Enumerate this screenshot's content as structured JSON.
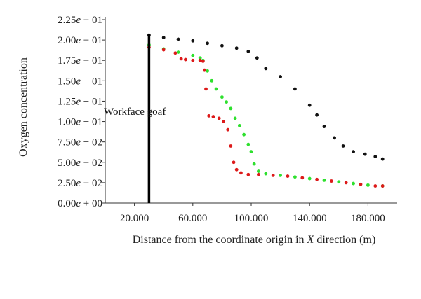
{
  "chart_data": {
    "type": "scatter",
    "xlabel_pre": "Distance from the coordinate origin in ",
    "xlabel_var": "X",
    "xlabel_post": " direction (m)",
    "ylabel": "Oxygen concentration",
    "xlim": [
      0,
      200
    ],
    "ylim": [
      0,
      0.225
    ],
    "x_ticks": [
      {
        "value": 20,
        "label": "20.000"
      },
      {
        "value": 60,
        "label": "60.000"
      },
      {
        "value": 100,
        "label": "100.000"
      },
      {
        "value": 140,
        "label": "140.000"
      },
      {
        "value": 180,
        "label": "180.000"
      }
    ],
    "y_ticks": [
      {
        "value": 0,
        "mantissa": "0.00",
        "exp": "+ 00"
      },
      {
        "value": 0.025,
        "mantissa": "2.50",
        "exp": "− 02"
      },
      {
        "value": 0.05,
        "mantissa": "5.00",
        "exp": "− 02"
      },
      {
        "value": 0.075,
        "mantissa": "7.50",
        "exp": "− 02"
      },
      {
        "value": 0.1,
        "mantissa": "1.00",
        "exp": "− 01"
      },
      {
        "value": 0.125,
        "mantissa": "1.25",
        "exp": "− 01"
      },
      {
        "value": 0.15,
        "mantissa": "1.50",
        "exp": "− 01"
      },
      {
        "value": 0.175,
        "mantissa": "1.75",
        "exp": "− 01"
      },
      {
        "value": 0.2,
        "mantissa": "2.00",
        "exp": "− 01"
      },
      {
        "value": 0.225,
        "mantissa": "2.25",
        "exp": "− 01"
      }
    ],
    "annotation": {
      "text": "Workface goaf",
      "x": 30
    },
    "grid": false,
    "legend": "none",
    "series": [
      {
        "color": "#111111",
        "points": [
          [
            30,
            0.206
          ],
          [
            40,
            0.203
          ],
          [
            50,
            0.201
          ],
          [
            60,
            0.199
          ],
          [
            70,
            0.196
          ],
          [
            80,
            0.193
          ],
          [
            90,
            0.19
          ],
          [
            98,
            0.186
          ],
          [
            104,
            0.178
          ],
          [
            110,
            0.165
          ],
          [
            120,
            0.155
          ],
          [
            130,
            0.14
          ],
          [
            140,
            0.12
          ],
          [
            145,
            0.108
          ],
          [
            150,
            0.094
          ],
          [
            157,
            0.08
          ],
          [
            163,
            0.07
          ],
          [
            170,
            0.063
          ],
          [
            178,
            0.06
          ],
          [
            185,
            0.057
          ],
          [
            190,
            0.054
          ]
        ]
      },
      {
        "color": "#2ee02e",
        "points": [
          [
            30,
            0.194
          ],
          [
            40,
            0.189
          ],
          [
            50,
            0.185
          ],
          [
            60,
            0.181
          ],
          [
            65,
            0.178
          ],
          [
            67,
            0.175
          ],
          [
            70,
            0.162
          ],
          [
            73,
            0.15
          ],
          [
            76,
            0.14
          ],
          [
            80,
            0.13
          ],
          [
            83,
            0.124
          ],
          [
            86,
            0.116
          ],
          [
            89,
            0.104
          ],
          [
            92,
            0.095
          ],
          [
            95,
            0.084
          ],
          [
            98,
            0.072
          ],
          [
            100,
            0.063
          ],
          [
            102,
            0.048
          ],
          [
            105,
            0.039
          ],
          [
            110,
            0.036
          ],
          [
            120,
            0.034
          ],
          [
            130,
            0.032
          ],
          [
            140,
            0.03
          ],
          [
            150,
            0.028
          ],
          [
            160,
            0.026
          ],
          [
            170,
            0.024
          ],
          [
            180,
            0.022
          ],
          [
            190,
            0.021
          ]
        ]
      },
      {
        "color": "#dd1a1a",
        "points": [
          [
            30,
            0.191
          ],
          [
            40,
            0.188
          ],
          [
            48,
            0.184
          ],
          [
            52,
            0.177
          ],
          [
            55,
            0.176
          ],
          [
            60,
            0.175
          ],
          [
            65,
            0.175
          ],
          [
            67,
            0.174
          ],
          [
            68,
            0.163
          ],
          [
            69,
            0.14
          ],
          [
            71,
            0.107
          ],
          [
            74,
            0.106
          ],
          [
            78,
            0.104
          ],
          [
            81,
            0.1
          ],
          [
            84,
            0.09
          ],
          [
            86,
            0.07
          ],
          [
            88,
            0.05
          ],
          [
            90,
            0.041
          ],
          [
            93,
            0.037
          ],
          [
            98,
            0.035
          ],
          [
            105,
            0.035
          ],
          [
            115,
            0.034
          ],
          [
            125,
            0.033
          ],
          [
            135,
            0.031
          ],
          [
            145,
            0.029
          ],
          [
            155,
            0.027
          ],
          [
            165,
            0.025
          ],
          [
            175,
            0.023
          ],
          [
            185,
            0.021
          ],
          [
            190,
            0.021
          ]
        ]
      }
    ]
  }
}
